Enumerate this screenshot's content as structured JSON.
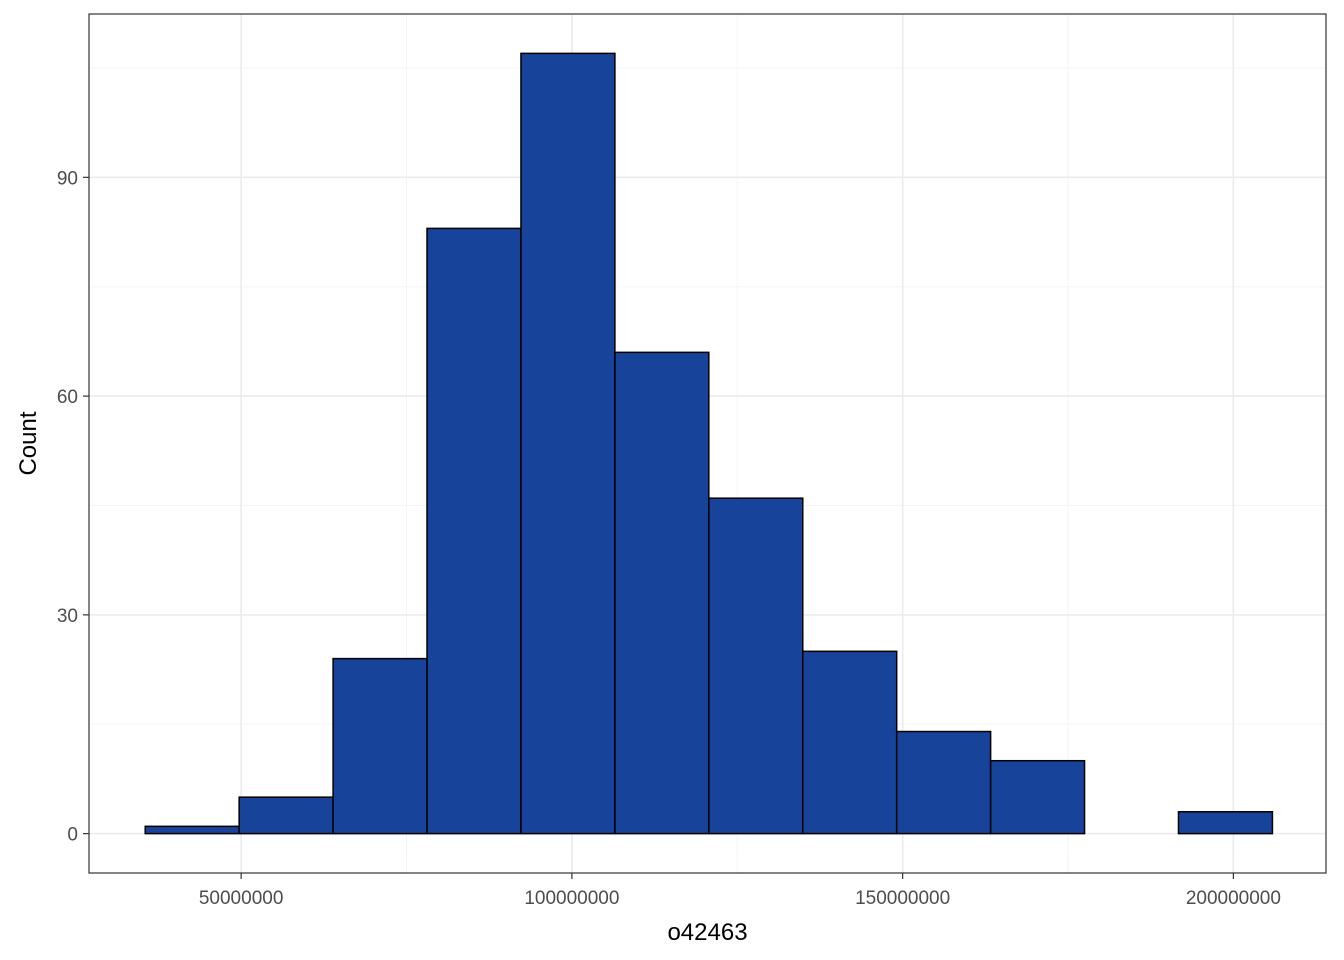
{
  "chart_data": {
    "type": "bar",
    "subtype": "histogram",
    "title": "",
    "xlabel": "o42463",
    "ylabel": "Count",
    "bins": [
      {
        "x0": 35500000,
        "x1": 49700000,
        "count": 1
      },
      {
        "x0": 49700000,
        "x1": 63900000,
        "count": 5
      },
      {
        "x0": 63900000,
        "x1": 78100000,
        "count": 24
      },
      {
        "x0": 78100000,
        "x1": 92300000,
        "count": 83
      },
      {
        "x0": 92300000,
        "x1": 106500000,
        "count": 107
      },
      {
        "x0": 106500000,
        "x1": 120700000,
        "count": 66
      },
      {
        "x0": 120700000,
        "x1": 134900000,
        "count": 46
      },
      {
        "x0": 134900000,
        "x1": 149100000,
        "count": 25
      },
      {
        "x0": 149100000,
        "x1": 163300000,
        "count": 14
      },
      {
        "x0": 163300000,
        "x1": 177500000,
        "count": 10
      },
      {
        "x0": 177500000,
        "x1": 191700000,
        "count": 0
      },
      {
        "x0": 191700000,
        "x1": 205900000,
        "count": 3
      }
    ],
    "xlim": [
      27000000,
      214000000
    ],
    "ylim": [
      -5.4,
      112.4
    ],
    "x_ticks": [
      50000000,
      100000000,
      150000000,
      200000000
    ],
    "x_tick_labels": [
      "50000000",
      "100000000",
      "150000000",
      "200000000"
    ],
    "y_ticks": [
      0,
      30,
      60,
      90
    ],
    "y_tick_labels": [
      "0",
      "30",
      "60",
      "90"
    ],
    "grid": true,
    "colors": {
      "bar_fill": "#17449a",
      "bar_stroke": "#000000",
      "grid_major": "#ebebeb",
      "grid_minor": "#f5f5f5",
      "panel_border": "#333333",
      "tick_text": "#4d4d4d"
    }
  }
}
